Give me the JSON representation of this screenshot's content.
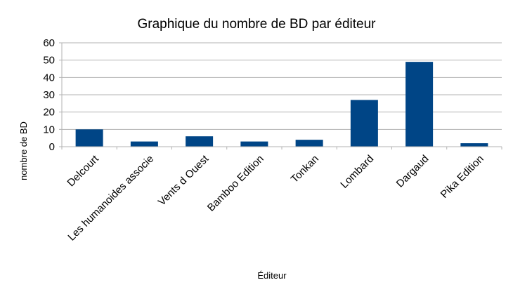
{
  "chart_data": {
    "type": "bar",
    "title": "Graphique du nombre de BD par éditeur",
    "xlabel": "Éditeur",
    "ylabel": "nombre de BD",
    "categories": [
      "Delcourt",
      "Les humanoides associe",
      "Vents d Ouest",
      "Bamboo Edition",
      "Tonkan",
      "Lombard",
      "Dargaud",
      "Pika Edition"
    ],
    "values": [
      10,
      3,
      6,
      3,
      4,
      27,
      49,
      2
    ],
    "ylim": [
      0,
      60
    ],
    "yticks": [
      0,
      10,
      20,
      30,
      40,
      50,
      60
    ],
    "grid": true,
    "legend": "none",
    "colors": {
      "bar": "#004586",
      "grid": "#b3b3b3",
      "axis": "#b3b3b3"
    }
  }
}
